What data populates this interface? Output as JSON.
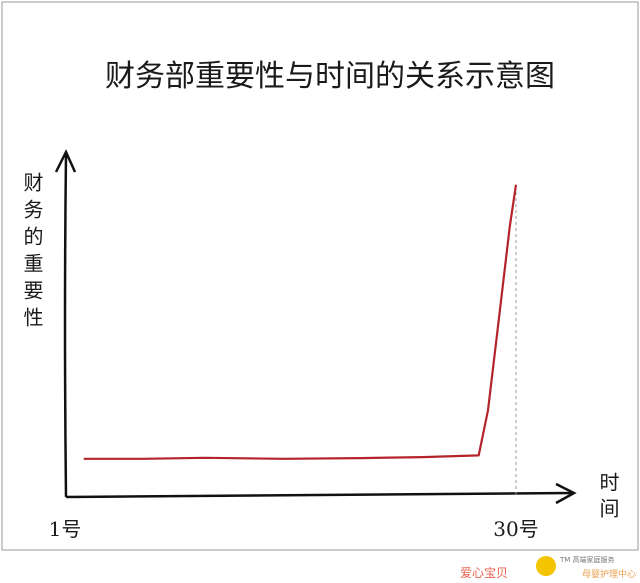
{
  "chart_data": {
    "type": "line",
    "title": "财务部重要性与时间的关系示意图",
    "y_label": "财务的重要性",
    "x_label": "时间",
    "x": [
      2.2,
      6,
      10,
      15,
      20,
      24,
      27.6,
      28.2,
      29,
      29.6,
      30
    ],
    "values": [
      11,
      11,
      11.3,
      11,
      11.2,
      11.5,
      12,
      25,
      55,
      78,
      90
    ],
    "color": "#b5242a",
    "xlim": [
      1,
      30
    ],
    "xticks": [
      {
        "value": 1,
        "label": "1号"
      },
      {
        "value": 30,
        "label": "30号"
      }
    ],
    "ylim": [
      0,
      100
    ]
  },
  "watermark": {
    "brand": "爱心宝贝",
    "tagline": "TM 高端家庭服务",
    "service": "母婴护理中心"
  }
}
